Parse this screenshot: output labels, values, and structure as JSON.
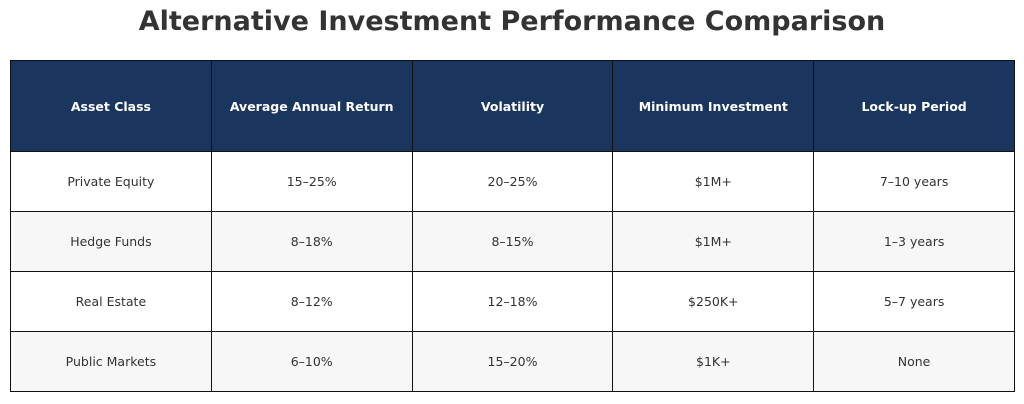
{
  "chart_data": {
    "type": "table",
    "title": "Alternative Investment Performance Comparison",
    "columns": [
      "Asset Class",
      "Average Annual Return",
      "Volatility",
      "Minimum Investment",
      "Lock-up Period"
    ],
    "rows": [
      [
        "Private Equity",
        "15–25%",
        "20–25%",
        "$1M+",
        "7–10 years"
      ],
      [
        "Hedge Funds",
        "8–18%",
        "8–15%",
        "$1M+",
        "1–3 years"
      ],
      [
        "Real Estate",
        "8–12%",
        "12–18%",
        "$250K+",
        "5–7 years"
      ],
      [
        "Public Markets",
        "6–10%",
        "15–20%",
        "$1K+",
        "None"
      ]
    ],
    "colors": {
      "header_background": "#1a355e",
      "header_text": "#ffffff",
      "row_odd": "#ffffff",
      "row_even": "#f7f7f7",
      "border": "#111111"
    }
  }
}
